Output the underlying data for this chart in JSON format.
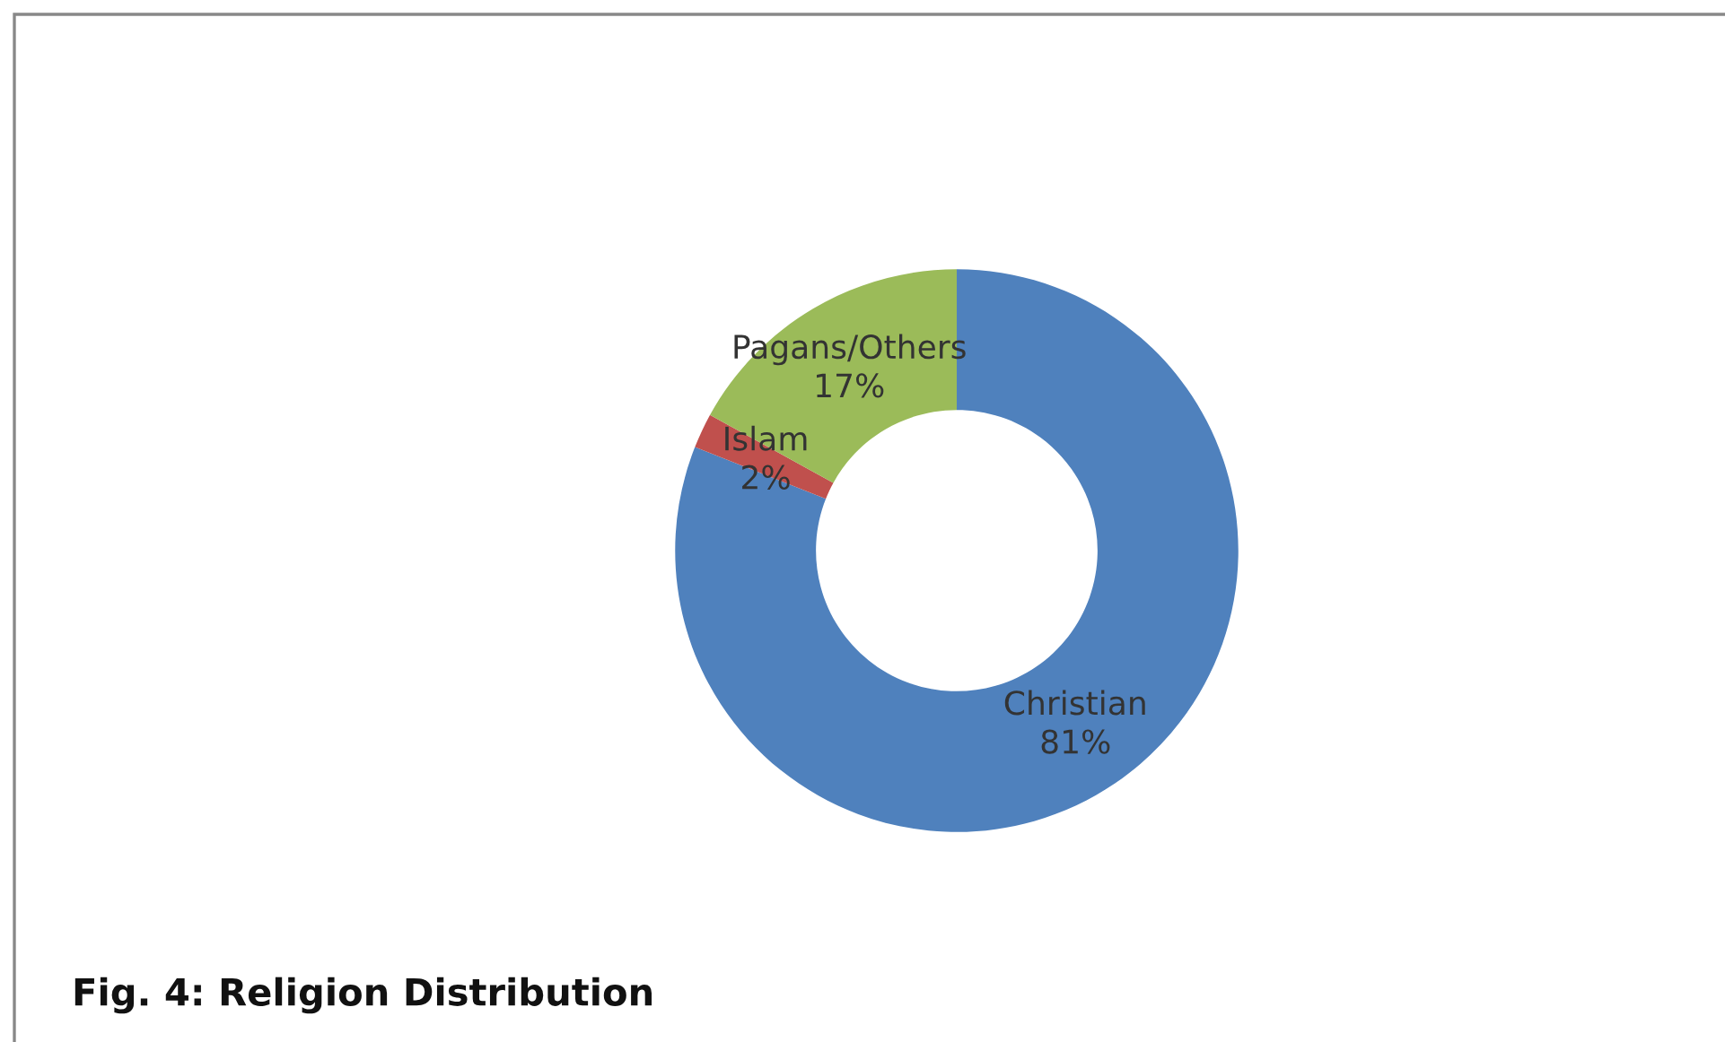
{
  "chart_data": {
    "type": "donut",
    "title": "Fig. 4: Religion Distribution",
    "categories": [
      "Christian",
      "Islam",
      "Pagans/Others"
    ],
    "values": [
      81,
      2,
      17
    ],
    "colors": [
      "#4f81bd",
      "#c0504d",
      "#9bbb59"
    ],
    "value_labels": [
      "81%",
      "2%",
      "17%"
    ],
    "legend": false
  }
}
